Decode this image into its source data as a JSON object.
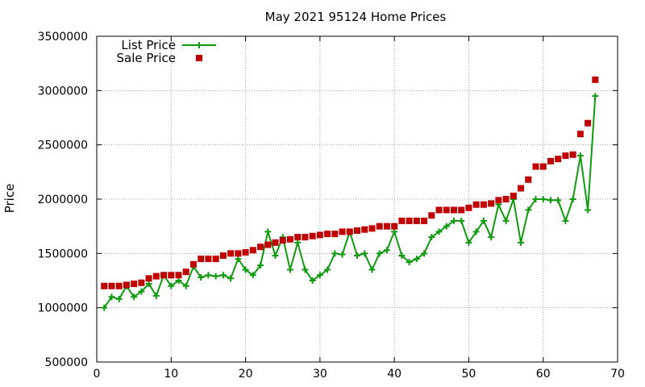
{
  "chart_data": {
    "type": "line+scatter",
    "title": "May 2021 95124 Home Prices",
    "xlabel": "",
    "ylabel": "Price",
    "xlim": [
      0,
      70
    ],
    "ylim": [
      500000,
      3500000
    ],
    "xticks": [
      0,
      10,
      20,
      30,
      40,
      50,
      60,
      70
    ],
    "yticks": [
      500000,
      1000000,
      1500000,
      2000000,
      2500000,
      3000000,
      3500000
    ],
    "grid": true,
    "legend_position": "top-left",
    "series": [
      {
        "name": "List Price",
        "style": "line-with-plus-markers",
        "color": "#109a10",
        "x": [
          1,
          2,
          3,
          4,
          5,
          6,
          7,
          8,
          9,
          10,
          11,
          12,
          13,
          14,
          15,
          16,
          17,
          18,
          19,
          20,
          21,
          22,
          23,
          24,
          25,
          26,
          27,
          28,
          29,
          30,
          31,
          32,
          33,
          34,
          35,
          36,
          37,
          38,
          39,
          40,
          41,
          42,
          43,
          44,
          45,
          46,
          47,
          48,
          49,
          50,
          51,
          52,
          53,
          54,
          55,
          56,
          57,
          58,
          59,
          60,
          61,
          62,
          63,
          64,
          65,
          66,
          67
        ],
        "y": [
          1000000,
          1100000,
          1080000,
          1200000,
          1100000,
          1150000,
          1220000,
          1110000,
          1300000,
          1200000,
          1250000,
          1200000,
          1380000,
          1280000,
          1300000,
          1290000,
          1300000,
          1270000,
          1450000,
          1350000,
          1300000,
          1390000,
          1700000,
          1480000,
          1650000,
          1350000,
          1600000,
          1350000,
          1250000,
          1300000,
          1350000,
          1500000,
          1490000,
          1700000,
          1480000,
          1500000,
          1350000,
          1500000,
          1530000,
          1700000,
          1480000,
          1420000,
          1450000,
          1500000,
          1650000,
          1700000,
          1750000,
          1800000,
          1800000,
          1600000,
          1700000,
          1800000,
          1650000,
          1950000,
          1800000,
          2000000,
          1600000,
          1900000,
          2000000,
          2000000,
          1990000,
          1990000,
          1800000,
          2000000,
          2400000,
          1900000,
          2950000
        ]
      },
      {
        "name": "Sale Price",
        "style": "square-markers",
        "color": "#c00000",
        "x": [
          1,
          2,
          3,
          4,
          5,
          6,
          7,
          8,
          9,
          10,
          11,
          12,
          13,
          14,
          15,
          16,
          17,
          18,
          19,
          20,
          21,
          22,
          23,
          24,
          25,
          26,
          27,
          28,
          29,
          30,
          31,
          32,
          33,
          34,
          35,
          36,
          37,
          38,
          39,
          40,
          41,
          42,
          43,
          44,
          45,
          46,
          47,
          48,
          49,
          50,
          51,
          52,
          53,
          54,
          55,
          56,
          57,
          58,
          59,
          60,
          61,
          62,
          63,
          64,
          65,
          66,
          67
        ],
        "y": [
          1200000,
          1200000,
          1200000,
          1210000,
          1220000,
          1230000,
          1270000,
          1290000,
          1300000,
          1300000,
          1300000,
          1330000,
          1400000,
          1450000,
          1450000,
          1450000,
          1480000,
          1500000,
          1500000,
          1510000,
          1530000,
          1560000,
          1580000,
          1600000,
          1620000,
          1630000,
          1650000,
          1650000,
          1660000,
          1670000,
          1680000,
          1680000,
          1700000,
          1700000,
          1710000,
          1720000,
          1730000,
          1750000,
          1750000,
          1750000,
          1800000,
          1800000,
          1800000,
          1800000,
          1850000,
          1900000,
          1900000,
          1900000,
          1900000,
          1920000,
          1950000,
          1950000,
          1960000,
          1990000,
          2000000,
          2030000,
          2100000,
          2180000,
          2300000,
          2300000,
          2350000,
          2370000,
          2400000,
          2410000,
          2600000,
          2700000,
          3100000
        ]
      }
    ]
  },
  "colors": {
    "grid": "#a0a0a0",
    "axis": "#000000",
    "background": "#ffffff"
  }
}
